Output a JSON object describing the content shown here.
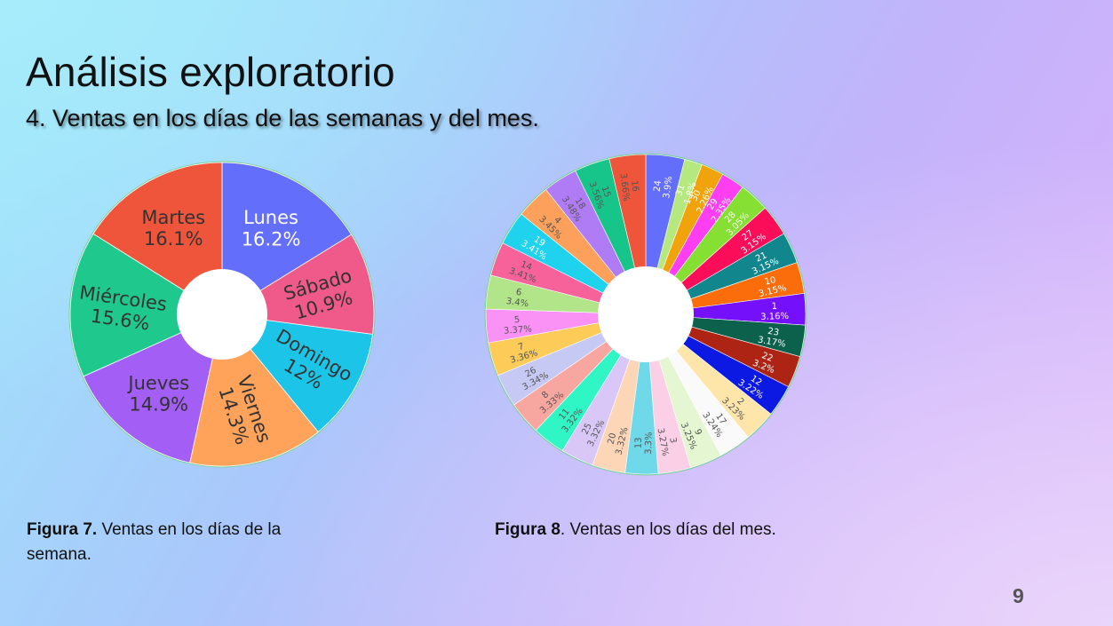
{
  "slide": {
    "title": "Análisis exploratorio",
    "subtitle": "4. Ventas en los días de las semanas y del mes.",
    "page_number": "9"
  },
  "captions": {
    "week": {
      "label": "Figura 7.",
      "text": " Ventas en los días de la semana."
    },
    "month": {
      "label": "Figura 8",
      "text": ". Ventas en los días del mes."
    }
  },
  "chart_data": [
    {
      "type": "pie",
      "hole": true,
      "labels": [
        "Lunes",
        "Sábado",
        "Domingo",
        "Viernes",
        "Jueves",
        "Miércoles",
        "Martes"
      ],
      "values": [
        16.2,
        10.9,
        12,
        14.3,
        14.9,
        15.6,
        16.1
      ],
      "value_labels": [
        "16.2%",
        "10.9%",
        "12%",
        "14.3%",
        "14.9%",
        "15.6%",
        "16.1%"
      ],
      "colors": [
        "#636efa",
        "#ef5a8a",
        "#1cc5e8",
        "#ffa25a",
        "#a35ef5",
        "#1fc98e",
        "#ef553b"
      ]
    },
    {
      "type": "pie",
      "hole": true,
      "labels": [
        "24",
        "31",
        "30",
        "29",
        "28",
        "27",
        "21",
        "10",
        "1",
        "23",
        "22",
        "12",
        "2",
        "17",
        "9",
        "3",
        "13",
        "20",
        "25",
        "11",
        "8",
        "26",
        "7",
        "5",
        "6",
        "14",
        "19",
        "4",
        "18",
        "15",
        "16"
      ],
      "values": [
        3.9,
        1.8,
        2.26,
        2.35,
        3.05,
        3.15,
        3.15,
        3.15,
        3.16,
        3.17,
        3.2,
        3.22,
        3.23,
        3.24,
        3.25,
        3.27,
        3.3,
        3.32,
        3.32,
        3.32,
        3.33,
        3.34,
        3.36,
        3.37,
        3.4,
        3.41,
        3.41,
        3.45,
        3.48,
        3.56,
        3.66
      ],
      "value_labels": [
        "3.9%",
        "1.8%",
        "2.26%",
        "2.35%",
        "3.05%",
        "3.15%",
        "3.15%",
        "3.15%",
        "3.16%",
        "3.17%",
        "3.2%",
        "3.22%",
        "3.23%",
        "3.24%",
        "3.25%",
        "3.27%",
        "3.3%",
        "3.32%",
        "3.32%",
        "3.32%",
        "3.33%",
        "3.34%",
        "3.36%",
        "3.37%",
        "3.4%",
        "3.41%",
        "3.41%",
        "3.45%",
        "3.48%",
        "3.56%",
        "3.66%"
      ],
      "colors": [
        "#636efa",
        "#b6e880",
        "#f0a30a",
        "#fe3ef0",
        "#86e033",
        "#fb0d5a",
        "#11868c",
        "#fb6d0a",
        "#7510fb",
        "#0c614d",
        "#ae2414",
        "#0c19e2",
        "#fee5a9",
        "#fafafa",
        "#e5f6d3",
        "#fbd0e7",
        "#6fd8e9",
        "#fdd6b8",
        "#d9c8f7",
        "#30f5c4",
        "#f7a6a0",
        "#c7c9f5",
        "#fdcb57",
        "#fa92f6",
        "#b2e48a",
        "#f7629b",
        "#1fd2ee",
        "#fda05b",
        "#b07cf6",
        "#17c48a",
        "#ef553b"
      ],
      "label_colors": [
        "#ffffff",
        "#ffffff",
        "#ffffff",
        "#ffffff",
        "#ffffff",
        "#ffffff",
        "#ffffff",
        "#ffffff",
        "#ffffff",
        "#ffffff",
        "#ffffff",
        "#ffffff",
        "#555555",
        "#555555",
        "#555555",
        "#555555",
        "#555555",
        "#555555",
        "#555555",
        "#555555",
        "#555555",
        "#555555",
        "#555555",
        "#555555",
        "#555555",
        "#555555",
        "#ffffff",
        "#555555",
        "#555555",
        "#555555",
        "#555555"
      ]
    }
  ]
}
